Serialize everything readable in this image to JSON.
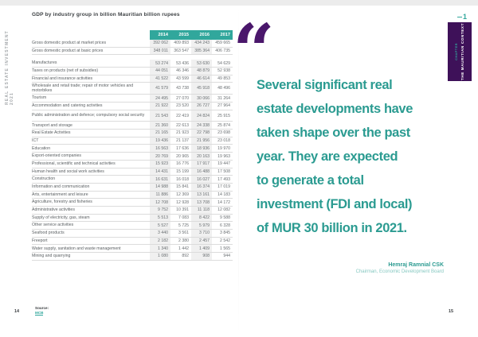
{
  "spine_text": "REAL ESTATE INVESTMENT 2021",
  "left_page": {
    "table_title": "GDP by industry group in billion Mauritian billion rupees",
    "years": [
      "2014",
      "2015",
      "2016",
      "2017"
    ],
    "summary_rows": [
      {
        "label": "Gross domestic product at market prices",
        "values": [
          "392 062",
          "409 893",
          "434 243",
          "459 665"
        ]
      },
      {
        "label": "Gross domestic product at basic prices",
        "values": [
          "348 011",
          "363 547",
          "385 364",
          "406 735"
        ]
      }
    ],
    "rows": [
      {
        "label": "Manufactures",
        "values": [
          "53 274",
          "53 436",
          "53 630",
          "54 629"
        ]
      },
      {
        "label": "Taxes on products (net of subsidies)",
        "values": [
          "44 051",
          "46 346",
          "48 879",
          "52 938"
        ]
      },
      {
        "label": "Financial and insurance activities",
        "values": [
          "41 522",
          "43 599",
          "46 614",
          "49 853"
        ]
      },
      {
        "label": "Wholesale and retail trade; repair of motor vehicles and motorbikes",
        "values": [
          "41 579",
          "43 738",
          "45 918",
          "48 496"
        ]
      },
      {
        "label": "Tourism",
        "values": [
          "24 495",
          "27 070",
          "30 066",
          "31 264"
        ]
      },
      {
        "label": "Accommodation and catering activities",
        "values": [
          "21 922",
          "23 520",
          "26 727",
          "27 964"
        ]
      },
      {
        "label": "Public administration and defence; compulsory social security",
        "values": [
          "21 543",
          "22 419",
          "24 824",
          "25 915"
        ]
      },
      {
        "label": "Transport and storage",
        "values": [
          "21 360",
          "22 613",
          "24 338",
          "25 874"
        ]
      },
      {
        "label": "Real Estate Activities",
        "values": [
          "21 165",
          "21 923",
          "22 798",
          "23 698"
        ]
      },
      {
        "label": "ICT",
        "values": [
          "19 436",
          "21 137",
          "21 956",
          "23 018"
        ]
      },
      {
        "label": "Education",
        "values": [
          "16 563",
          "17 636",
          "18 936",
          "19 970"
        ]
      },
      {
        "label": "Export-oriented companies",
        "values": [
          "20 769",
          "20 965",
          "20 163",
          "19 963"
        ]
      },
      {
        "label": "Professional, scientific and technical activities",
        "values": [
          "15 923",
          "16 776",
          "17 917",
          "19 447"
        ]
      },
      {
        "label": "Human health and social work activities",
        "values": [
          "14 431",
          "15 199",
          "16 488",
          "17 508"
        ]
      },
      {
        "label": "Construction",
        "values": [
          "16 631",
          "16 018",
          "16 027",
          "17 493"
        ]
      },
      {
        "label": "Information and communication",
        "values": [
          "14 988",
          "15 841",
          "16 374",
          "17 019"
        ]
      },
      {
        "label": "Arts, entertainment and leisure",
        "values": [
          "11 886",
          "12 369",
          "13 161",
          "14 183"
        ]
      },
      {
        "label": "Agriculture, forestry and fisheries",
        "values": [
          "12 708",
          "12 928",
          "13 708",
          "14 172"
        ]
      },
      {
        "label": "Administrative activities",
        "values": [
          "9 752",
          "10 391",
          "11 118",
          "12 082"
        ]
      },
      {
        "label": "Supply of electricity, gas, steam",
        "values": [
          "5 513",
          "7 083",
          "8 422",
          "9 588"
        ]
      },
      {
        "label": "Other service activities",
        "values": [
          "5 527",
          "5 725",
          "5 979",
          "6 328"
        ]
      },
      {
        "label": "Seafood products",
        "values": [
          "3 440",
          "3 561",
          "3 710",
          "3 845"
        ]
      },
      {
        "label": "Freeport",
        "values": [
          "2 182",
          "2 380",
          "2 457",
          "2 542"
        ]
      },
      {
        "label": "Water supply, sanitation and waste management",
        "values": [
          "1 340",
          "1 442",
          "1 409",
          "1 565"
        ]
      },
      {
        "label": "Mining and quarrying",
        "values": [
          "1 080",
          "892",
          "908",
          "944"
        ]
      }
    ],
    "source_label": "Source:",
    "source_link": "MCB",
    "page_number": "14"
  },
  "right_page": {
    "quote_mark": "“",
    "quote": "Several significant real\nestate developments have\ntaken shape over the past\nyear. They are expected\nto generate a total\ninvestment (FDI and local)\nof MUR 30 billion in 2021.",
    "attribution_name": "Hemraj Ramnial CSK",
    "attribution_role": "Chairman, Economic Development Board",
    "page_number": "15",
    "chapter_tab": {
      "number": "1",
      "label": "THE MAURITIAN CONTEXT",
      "sublabel": "CHAPTER"
    }
  },
  "colors": {
    "teal": "#31a79c",
    "quote_teal": "#2b9b91",
    "light_teal": "#86c8c1",
    "purple_tab": "#3e1159",
    "purple_quote_mark": "#4a176b",
    "table_stripe": "#f0f0f0",
    "row_border": "#dcdcdc"
  }
}
